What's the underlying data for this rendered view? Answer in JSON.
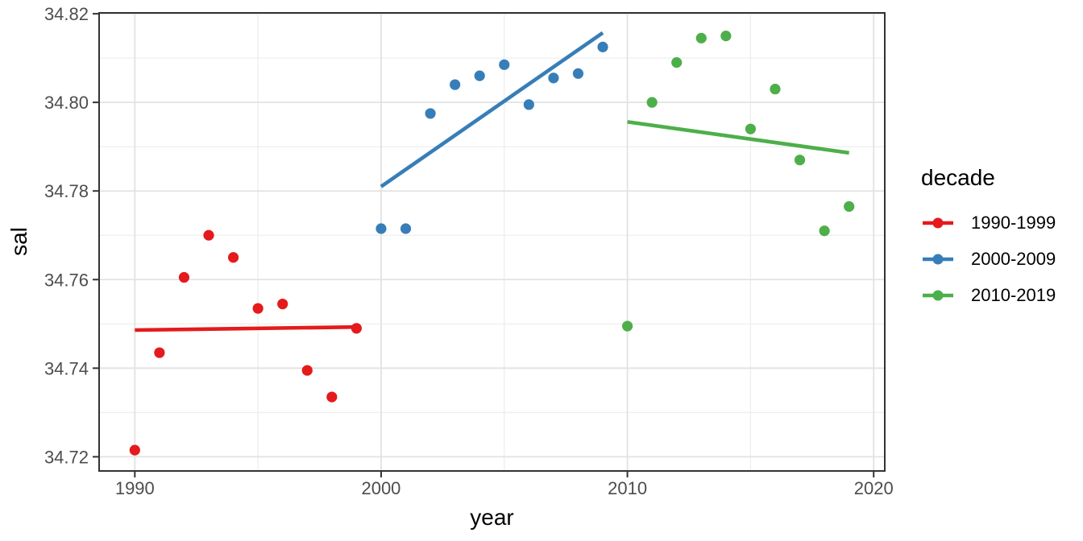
{
  "figure": {
    "background": "#FFFFFF"
  },
  "chart_data": {
    "type": "scatter",
    "title": "",
    "xlabel": "year",
    "ylabel": "sal",
    "legend_title": "decade",
    "legend_position": "right",
    "grid": "major+minor",
    "xlim": [
      1988.55,
      2020.45
    ],
    "ylim": [
      34.7168,
      34.8202
    ],
    "x_ticks": [
      {
        "value": 1990,
        "label": "1990"
      },
      {
        "value": 2000,
        "label": "2000"
      },
      {
        "value": 2010,
        "label": "2010"
      },
      {
        "value": 2020,
        "label": "2020"
      }
    ],
    "x_minor": [
      1995,
      2005,
      2015
    ],
    "y_ticks": [
      {
        "value": 34.72,
        "label": "34.72"
      },
      {
        "value": 34.74,
        "label": "34.74"
      },
      {
        "value": 34.76,
        "label": "34.76"
      },
      {
        "value": 34.78,
        "label": "34.78"
      },
      {
        "value": 34.8,
        "label": "34.80"
      },
      {
        "value": 34.82,
        "label": "34.82"
      }
    ],
    "y_minor": [
      34.73,
      34.75,
      34.77,
      34.79,
      34.81
    ],
    "series": [
      {
        "name": "1990-1999",
        "color": "#E41A1C",
        "x": [
          1990,
          1991,
          1992,
          1993,
          1994,
          1995,
          1996,
          1997,
          1998,
          1999
        ],
        "y": [
          34.7215,
          34.7435,
          34.7605,
          34.77,
          34.765,
          34.7535,
          34.7545,
          34.7395,
          34.7335,
          34.749
        ],
        "trend": {
          "x1": 1990,
          "y1": 34.7486,
          "x2": 1999,
          "y2": 34.7493
        }
      },
      {
        "name": "2000-2009",
        "color": "#377EB8",
        "x": [
          2000,
          2001,
          2002,
          2003,
          2004,
          2005,
          2006,
          2007,
          2008,
          2009
        ],
        "y": [
          34.7715,
          34.7715,
          34.7975,
          34.804,
          34.806,
          34.8085,
          34.7995,
          34.8055,
          34.8065,
          34.8125
        ],
        "trend": {
          "x1": 2000,
          "y1": 34.781,
          "x2": 2009,
          "y2": 34.8157
        }
      },
      {
        "name": "2010-2019",
        "color": "#4DAF4A",
        "x": [
          2010,
          2011,
          2012,
          2013,
          2014,
          2015,
          2016,
          2017,
          2018,
          2019
        ],
        "y": [
          34.7495,
          34.8,
          34.809,
          34.8145,
          34.815,
          34.794,
          34.803,
          34.787,
          34.771,
          34.7765
        ],
        "trend": {
          "x1": 2010,
          "y1": 34.7956,
          "x2": 2019,
          "y2": 34.7886
        }
      }
    ],
    "style": {
      "point_radius": 6.6,
      "trend_width": 4.6,
      "grid_major_color": "#E2E2E2",
      "grid_minor_color": "#EBEBEB",
      "panel_border_color": "#333333",
      "tick_color": "#333333",
      "tick_label_color": "#4D4D4D",
      "panel_background": "#FFFFFF"
    }
  }
}
